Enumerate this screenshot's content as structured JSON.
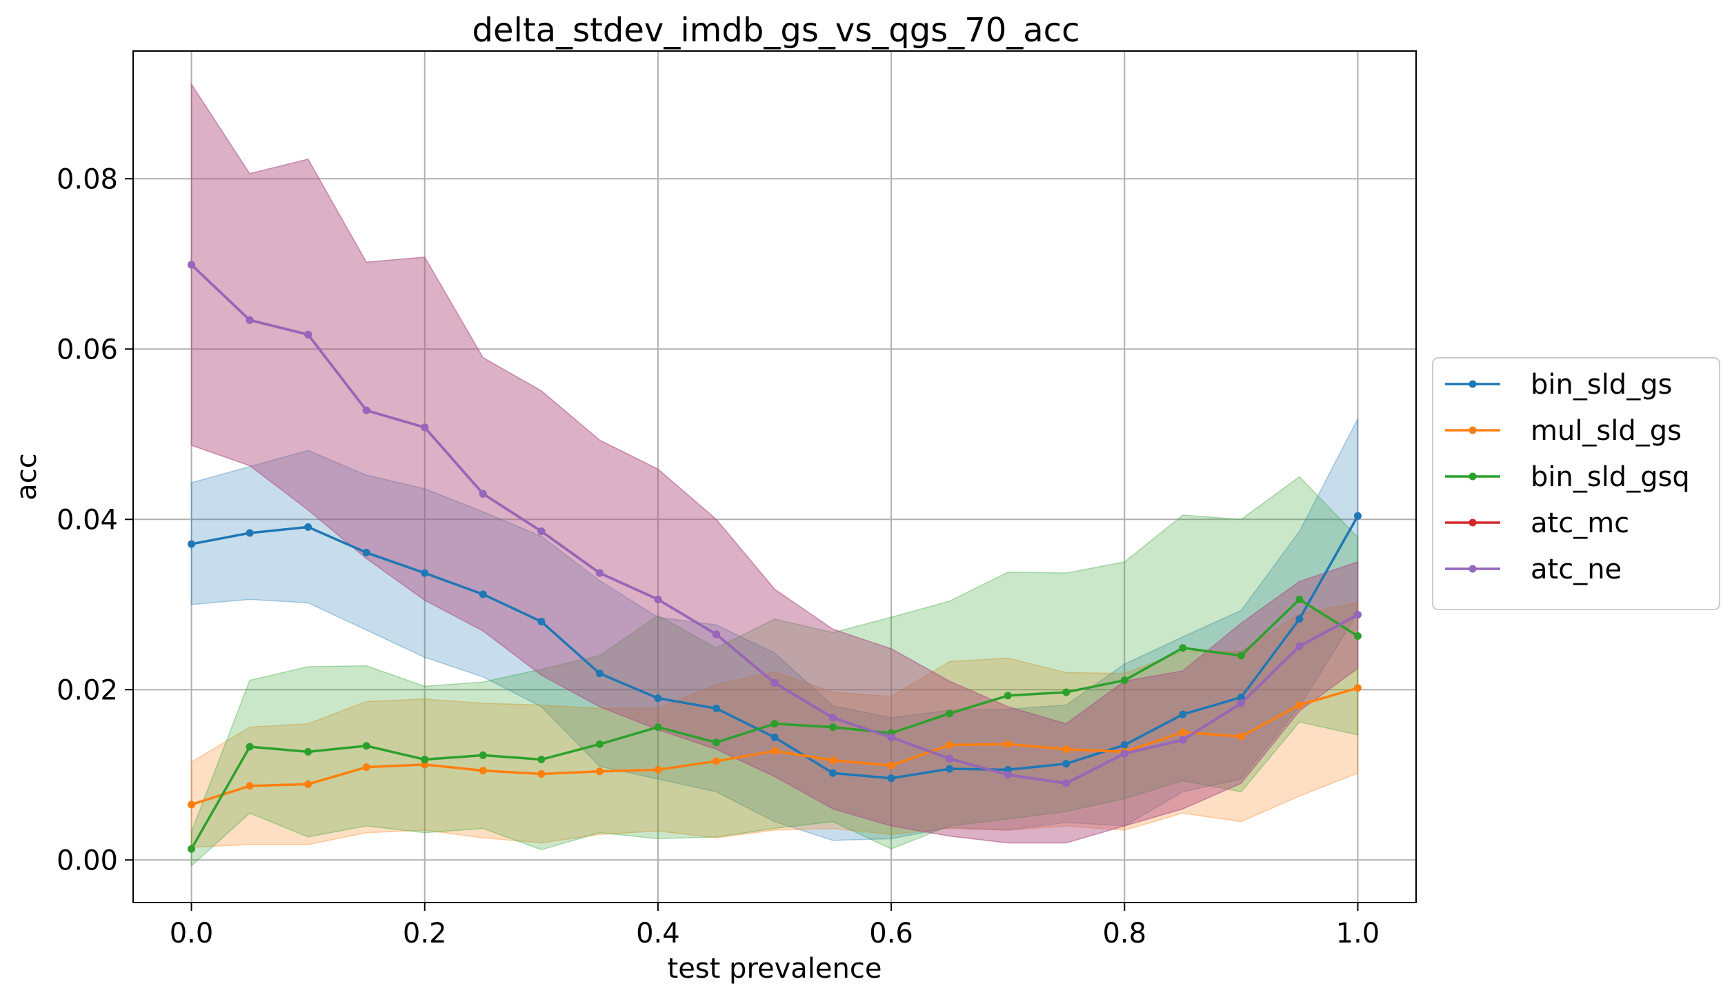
{
  "chart_data": {
    "type": "line",
    "title": "delta_stdev_imdb_gs_vs_qgs_70_acc",
    "xlabel": "test prevalence",
    "ylabel": "acc",
    "xlim": [
      -0.05,
      1.05
    ],
    "ylim": [
      -0.005,
      0.095
    ],
    "xticks": [
      0.0,
      0.2,
      0.4,
      0.6,
      0.8,
      1.0
    ],
    "xtick_labels": [
      "0.0",
      "0.2",
      "0.4",
      "0.6",
      "0.8",
      "1.0"
    ],
    "yticks": [
      0.0,
      0.02,
      0.04,
      0.06,
      0.08
    ],
    "ytick_labels": [
      "0.00",
      "0.02",
      "0.04",
      "0.06",
      "0.08"
    ],
    "grid": true,
    "legend_position": "center-right-outside",
    "x": [
      0.0,
      0.05,
      0.1,
      0.15,
      0.2,
      0.25,
      0.3,
      0.35,
      0.4,
      0.45,
      0.5,
      0.55,
      0.6,
      0.65,
      0.7,
      0.75,
      0.8,
      0.85,
      0.9,
      0.95,
      1.0
    ],
    "series": [
      {
        "name": "bin_sld_gs",
        "color": "#1f77b4",
        "values": [
          0.0371,
          0.0384,
          0.0391,
          0.0361,
          0.0337,
          0.0312,
          0.028,
          0.0219,
          0.019,
          0.0178,
          0.0144,
          0.0102,
          0.0096,
          0.0107,
          0.0106,
          0.0113,
          0.0135,
          0.0171,
          0.0191,
          0.0283,
          0.0404
        ],
        "lower": [
          0.03,
          0.0306,
          0.0302,
          0.027,
          0.0238,
          0.0215,
          0.018,
          0.011,
          0.0095,
          0.008,
          0.0045,
          0.0023,
          0.0025,
          0.0038,
          0.0035,
          0.0044,
          0.004,
          0.008,
          0.0095,
          0.018,
          0.029
        ],
        "upper": [
          0.0443,
          0.0462,
          0.0481,
          0.0452,
          0.0436,
          0.0409,
          0.038,
          0.0328,
          0.0285,
          0.0276,
          0.0243,
          0.0181,
          0.0167,
          0.0176,
          0.0177,
          0.0182,
          0.023,
          0.0262,
          0.0293,
          0.0386,
          0.0518
        ]
      },
      {
        "name": "mul_sld_gs",
        "color": "#ff7f0e",
        "values": [
          0.0065,
          0.0087,
          0.0089,
          0.0109,
          0.0112,
          0.0105,
          0.0101,
          0.0104,
          0.0106,
          0.0116,
          0.0128,
          0.0117,
          0.0111,
          0.0135,
          0.0136,
          0.013,
          0.0127,
          0.015,
          0.0145,
          0.0182,
          0.0202
        ],
        "lower": [
          0.0015,
          0.0018,
          0.0018,
          0.0032,
          0.0035,
          0.0026,
          0.002,
          0.003,
          0.0034,
          0.0026,
          0.0035,
          0.0037,
          0.003,
          0.0037,
          0.0035,
          0.004,
          0.0035,
          0.0055,
          0.0045,
          0.0075,
          0.0102
        ],
        "upper": [
          0.0115,
          0.0156,
          0.016,
          0.0186,
          0.0189,
          0.0184,
          0.0182,
          0.0178,
          0.0178,
          0.0206,
          0.0221,
          0.0197,
          0.0192,
          0.0233,
          0.0237,
          0.022,
          0.0219,
          0.0245,
          0.0245,
          0.0289,
          0.0302
        ]
      },
      {
        "name": "bin_sld_gsq",
        "color": "#2ca02c",
        "values": [
          0.0013,
          0.0133,
          0.0127,
          0.0134,
          0.0118,
          0.0123,
          0.0118,
          0.0136,
          0.0156,
          0.0138,
          0.016,
          0.0156,
          0.0149,
          0.0172,
          0.0193,
          0.0197,
          0.0211,
          0.0249,
          0.024,
          0.0306,
          0.0263
        ],
        "lower": [
          -0.0007,
          0.0055,
          0.0027,
          0.004,
          0.0032,
          0.0037,
          0.0012,
          0.0032,
          0.0025,
          0.0027,
          0.0037,
          0.0045,
          0.0013,
          0.004,
          0.0048,
          0.0057,
          0.0072,
          0.0093,
          0.008,
          0.0162,
          0.0147
        ],
        "upper": [
          0.0033,
          0.0211,
          0.0227,
          0.0228,
          0.0204,
          0.0209,
          0.0224,
          0.024,
          0.0287,
          0.0249,
          0.0283,
          0.0267,
          0.0285,
          0.0304,
          0.0338,
          0.0337,
          0.035,
          0.0405,
          0.04,
          0.045,
          0.0379
        ]
      },
      {
        "name": "atc_mc",
        "color": "#d62728",
        "values": [
          0.0699,
          0.0634,
          0.0617,
          0.0528,
          0.0508,
          0.043,
          0.0386,
          0.0337,
          0.0306,
          0.0265,
          0.0208,
          0.0167,
          0.0144,
          0.0119,
          0.01,
          0.009,
          0.0125,
          0.0141,
          0.0184,
          0.0251,
          0.0288
        ],
        "lower": [
          0.0487,
          0.0463,
          0.0411,
          0.0354,
          0.0305,
          0.0269,
          0.0217,
          0.018,
          0.0153,
          0.013,
          0.0098,
          0.006,
          0.004,
          0.0028,
          0.002,
          0.002,
          0.004,
          0.006,
          0.009,
          0.0175,
          0.0225
        ],
        "upper": [
          0.0911,
          0.0806,
          0.0823,
          0.0702,
          0.0708,
          0.059,
          0.0551,
          0.0493,
          0.0459,
          0.04,
          0.0318,
          0.0271,
          0.0248,
          0.021,
          0.018,
          0.016,
          0.021,
          0.0222,
          0.0278,
          0.0327,
          0.035
        ]
      },
      {
        "name": "atc_ne",
        "color": "#9467bd",
        "values": [
          0.0699,
          0.0634,
          0.0617,
          0.0528,
          0.0508,
          0.043,
          0.0386,
          0.0337,
          0.0306,
          0.0265,
          0.0208,
          0.0167,
          0.0144,
          0.0119,
          0.01,
          0.009,
          0.0125,
          0.0141,
          0.0184,
          0.0251,
          0.0288
        ],
        "lower": [
          0.0487,
          0.0463,
          0.0411,
          0.0354,
          0.0305,
          0.0269,
          0.0217,
          0.018,
          0.0153,
          0.013,
          0.0098,
          0.006,
          0.004,
          0.0028,
          0.002,
          0.002,
          0.004,
          0.006,
          0.009,
          0.0175,
          0.0225
        ],
        "upper": [
          0.0911,
          0.0806,
          0.0823,
          0.0702,
          0.0708,
          0.059,
          0.0551,
          0.0493,
          0.0459,
          0.04,
          0.0318,
          0.0271,
          0.0248,
          0.021,
          0.018,
          0.016,
          0.021,
          0.0222,
          0.0278,
          0.0327,
          0.035
        ]
      }
    ]
  }
}
